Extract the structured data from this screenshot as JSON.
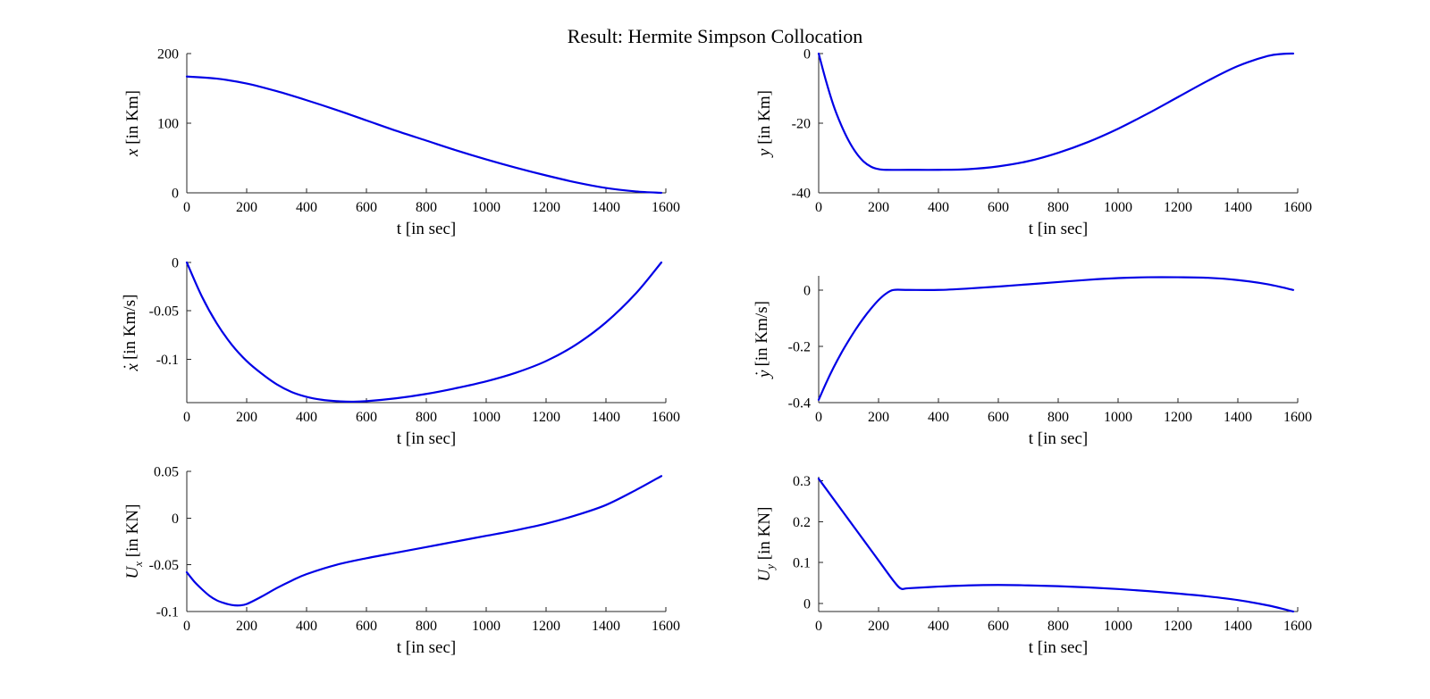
{
  "figure": {
    "title": "Result: Hermite Simpson Collocation",
    "line_color": "#0000e6"
  },
  "chart_data": [
    {
      "type": "line",
      "xlabel": "t [in sec]",
      "ylabel": {
        "var": "x",
        "accent": "",
        "sub": "",
        "unit": " [in Km]"
      },
      "xlim": [
        0,
        1600
      ],
      "ylim": [
        0,
        200
      ],
      "xticks": [
        0,
        200,
        400,
        600,
        800,
        1000,
        1200,
        1400,
        1600
      ],
      "yticks": [
        0,
        100,
        200
      ],
      "yticklabels": [
        "0",
        "100",
        "200"
      ],
      "grid": false,
      "series": [
        {
          "x": [
            0,
            100,
            200,
            300,
            400,
            500,
            600,
            700,
            800,
            900,
            1000,
            1100,
            1200,
            1300,
            1400,
            1500,
            1585
          ],
          "y": [
            167,
            164,
            157,
            146,
            133,
            119,
            104,
            89,
            75,
            61,
            48,
            36,
            25,
            15,
            7,
            2,
            0
          ]
        }
      ]
    },
    {
      "type": "line",
      "xlabel": "t [in sec]",
      "ylabel": {
        "var": "y",
        "accent": "",
        "sub": "",
        "unit": " [in Km]"
      },
      "xlim": [
        0,
        1600
      ],
      "ylim": [
        -40,
        0
      ],
      "xticks": [
        0,
        200,
        400,
        600,
        800,
        1000,
        1200,
        1400,
        1600
      ],
      "yticks": [
        -40,
        -20,
        0
      ],
      "yticklabels": [
        "-40",
        "-20",
        "0"
      ],
      "grid": false,
      "series": [
        {
          "x": [
            0,
            25,
            50,
            75,
            100,
            125,
            150,
            175,
            200,
            225,
            300,
            400,
            500,
            600,
            700,
            800,
            900,
            1000,
            1100,
            1200,
            1300,
            1400,
            1500,
            1550,
            1585
          ],
          "y": [
            0,
            -8,
            -15,
            -20.5,
            -25,
            -28.5,
            -31,
            -32.5,
            -33.2,
            -33.4,
            -33.4,
            -33.4,
            -33.2,
            -32.4,
            -30.9,
            -28.5,
            -25.4,
            -21.6,
            -17.2,
            -12.5,
            -7.8,
            -3.6,
            -0.7,
            -0.1,
            0
          ]
        }
      ]
    },
    {
      "type": "line",
      "xlabel": "t [in sec]",
      "ylabel": {
        "var": "x",
        "accent": "˙",
        "sub": "",
        "unit": " [in Km/s]"
      },
      "xlim": [
        0,
        1600
      ],
      "ylim": [
        -0.145,
        0
      ],
      "xticks": [
        0,
        200,
        400,
        600,
        800,
        1000,
        1200,
        1400,
        1600
      ],
      "yticks": [
        -0.1,
        -0.05,
        0
      ],
      "yticklabels": [
        "-0.1",
        "-0.05",
        "0"
      ],
      "grid": false,
      "series": [
        {
          "x": [
            0,
            50,
            100,
            150,
            200,
            250,
            300,
            350,
            400,
            450,
            500,
            550,
            600,
            700,
            800,
            900,
            1000,
            1100,
            1200,
            1300,
            1400,
            1500,
            1585
          ],
          "y": [
            0,
            -0.035,
            -0.063,
            -0.085,
            -0.102,
            -0.115,
            -0.126,
            -0.134,
            -0.139,
            -0.142,
            -0.1435,
            -0.144,
            -0.1435,
            -0.1405,
            -0.136,
            -0.13,
            -0.123,
            -0.114,
            -0.102,
            -0.085,
            -0.062,
            -0.032,
            0
          ]
        }
      ]
    },
    {
      "type": "line",
      "xlabel": "t [in sec]",
      "ylabel": {
        "var": "y",
        "accent": "˙",
        "sub": "",
        "unit": " [in Km/s]"
      },
      "xlim": [
        0,
        1600
      ],
      "ylim": [
        -0.4,
        0.05
      ],
      "xticks": [
        0,
        200,
        400,
        600,
        800,
        1000,
        1200,
        1400,
        1600
      ],
      "yticks": [
        -0.4,
        -0.2,
        0
      ],
      "yticklabels": [
        "-0.4",
        "-0.2",
        "0"
      ],
      "grid": false,
      "series": [
        {
          "x": [
            0,
            25,
            50,
            75,
            100,
            125,
            150,
            175,
            200,
            225,
            250,
            300,
            400,
            500,
            600,
            700,
            800,
            900,
            1000,
            1100,
            1200,
            1300,
            1400,
            1500,
            1585
          ],
          "y": [
            -0.39,
            -0.33,
            -0.275,
            -0.225,
            -0.18,
            -0.138,
            -0.1,
            -0.066,
            -0.036,
            -0.013,
            0,
            0,
            0,
            0.005,
            0.012,
            0.02,
            0.028,
            0.036,
            0.042,
            0.045,
            0.045,
            0.043,
            0.035,
            0.02,
            0
          ]
        }
      ]
    },
    {
      "type": "line",
      "xlabel": "t [in sec]",
      "ylabel": {
        "var": "U",
        "accent": "",
        "sub": "x",
        "unit": " [in KN]"
      },
      "xlim": [
        0,
        1600
      ],
      "ylim": [
        -0.1,
        0.05
      ],
      "xticks": [
        0,
        200,
        400,
        600,
        800,
        1000,
        1200,
        1400,
        1600
      ],
      "yticks": [
        -0.1,
        -0.05,
        0,
        0.05
      ],
      "yticklabels": [
        "-0.1",
        "-0.05",
        "0",
        "0.05"
      ],
      "grid": false,
      "series": [
        {
          "x": [
            0,
            25,
            50,
            75,
            100,
            125,
            150,
            175,
            200,
            250,
            300,
            350,
            400,
            500,
            600,
            700,
            800,
            900,
            1000,
            1100,
            1200,
            1300,
            1400,
            1500,
            1585
          ],
          "y": [
            -0.058,
            -0.068,
            -0.076,
            -0.083,
            -0.088,
            -0.091,
            -0.093,
            -0.0935,
            -0.092,
            -0.084,
            -0.075,
            -0.067,
            -0.06,
            -0.05,
            -0.043,
            -0.037,
            -0.031,
            -0.025,
            -0.019,
            -0.013,
            -0.006,
            0.003,
            0.014,
            0.03,
            0.045
          ]
        }
      ]
    },
    {
      "type": "line",
      "xlabel": "t [in sec]",
      "ylabel": {
        "var": "U",
        "accent": "",
        "sub": "y",
        "unit": " [in KN]"
      },
      "xlim": [
        0,
        1600
      ],
      "ylim": [
        -0.02,
        0.31
      ],
      "xticks": [
        0,
        200,
        400,
        600,
        800,
        1000,
        1200,
        1400,
        1600
      ],
      "yticks": [
        0,
        0.1,
        0.2,
        0.3
      ],
      "yticklabels": [
        "0",
        "0.1",
        "0.2",
        "0.3"
      ],
      "grid": false,
      "series": [
        {
          "x": [
            0,
            50,
            100,
            150,
            200,
            250,
            275,
            300,
            400,
            500,
            600,
            700,
            800,
            900,
            1000,
            1100,
            1200,
            1300,
            1400,
            1500,
            1585
          ],
          "y": [
            0.305,
            0.255,
            0.205,
            0.155,
            0.105,
            0.055,
            0.036,
            0.037,
            0.041,
            0.044,
            0.045,
            0.044,
            0.042,
            0.039,
            0.035,
            0.03,
            0.024,
            0.017,
            0.008,
            -0.005,
            -0.02
          ]
        }
      ]
    }
  ]
}
